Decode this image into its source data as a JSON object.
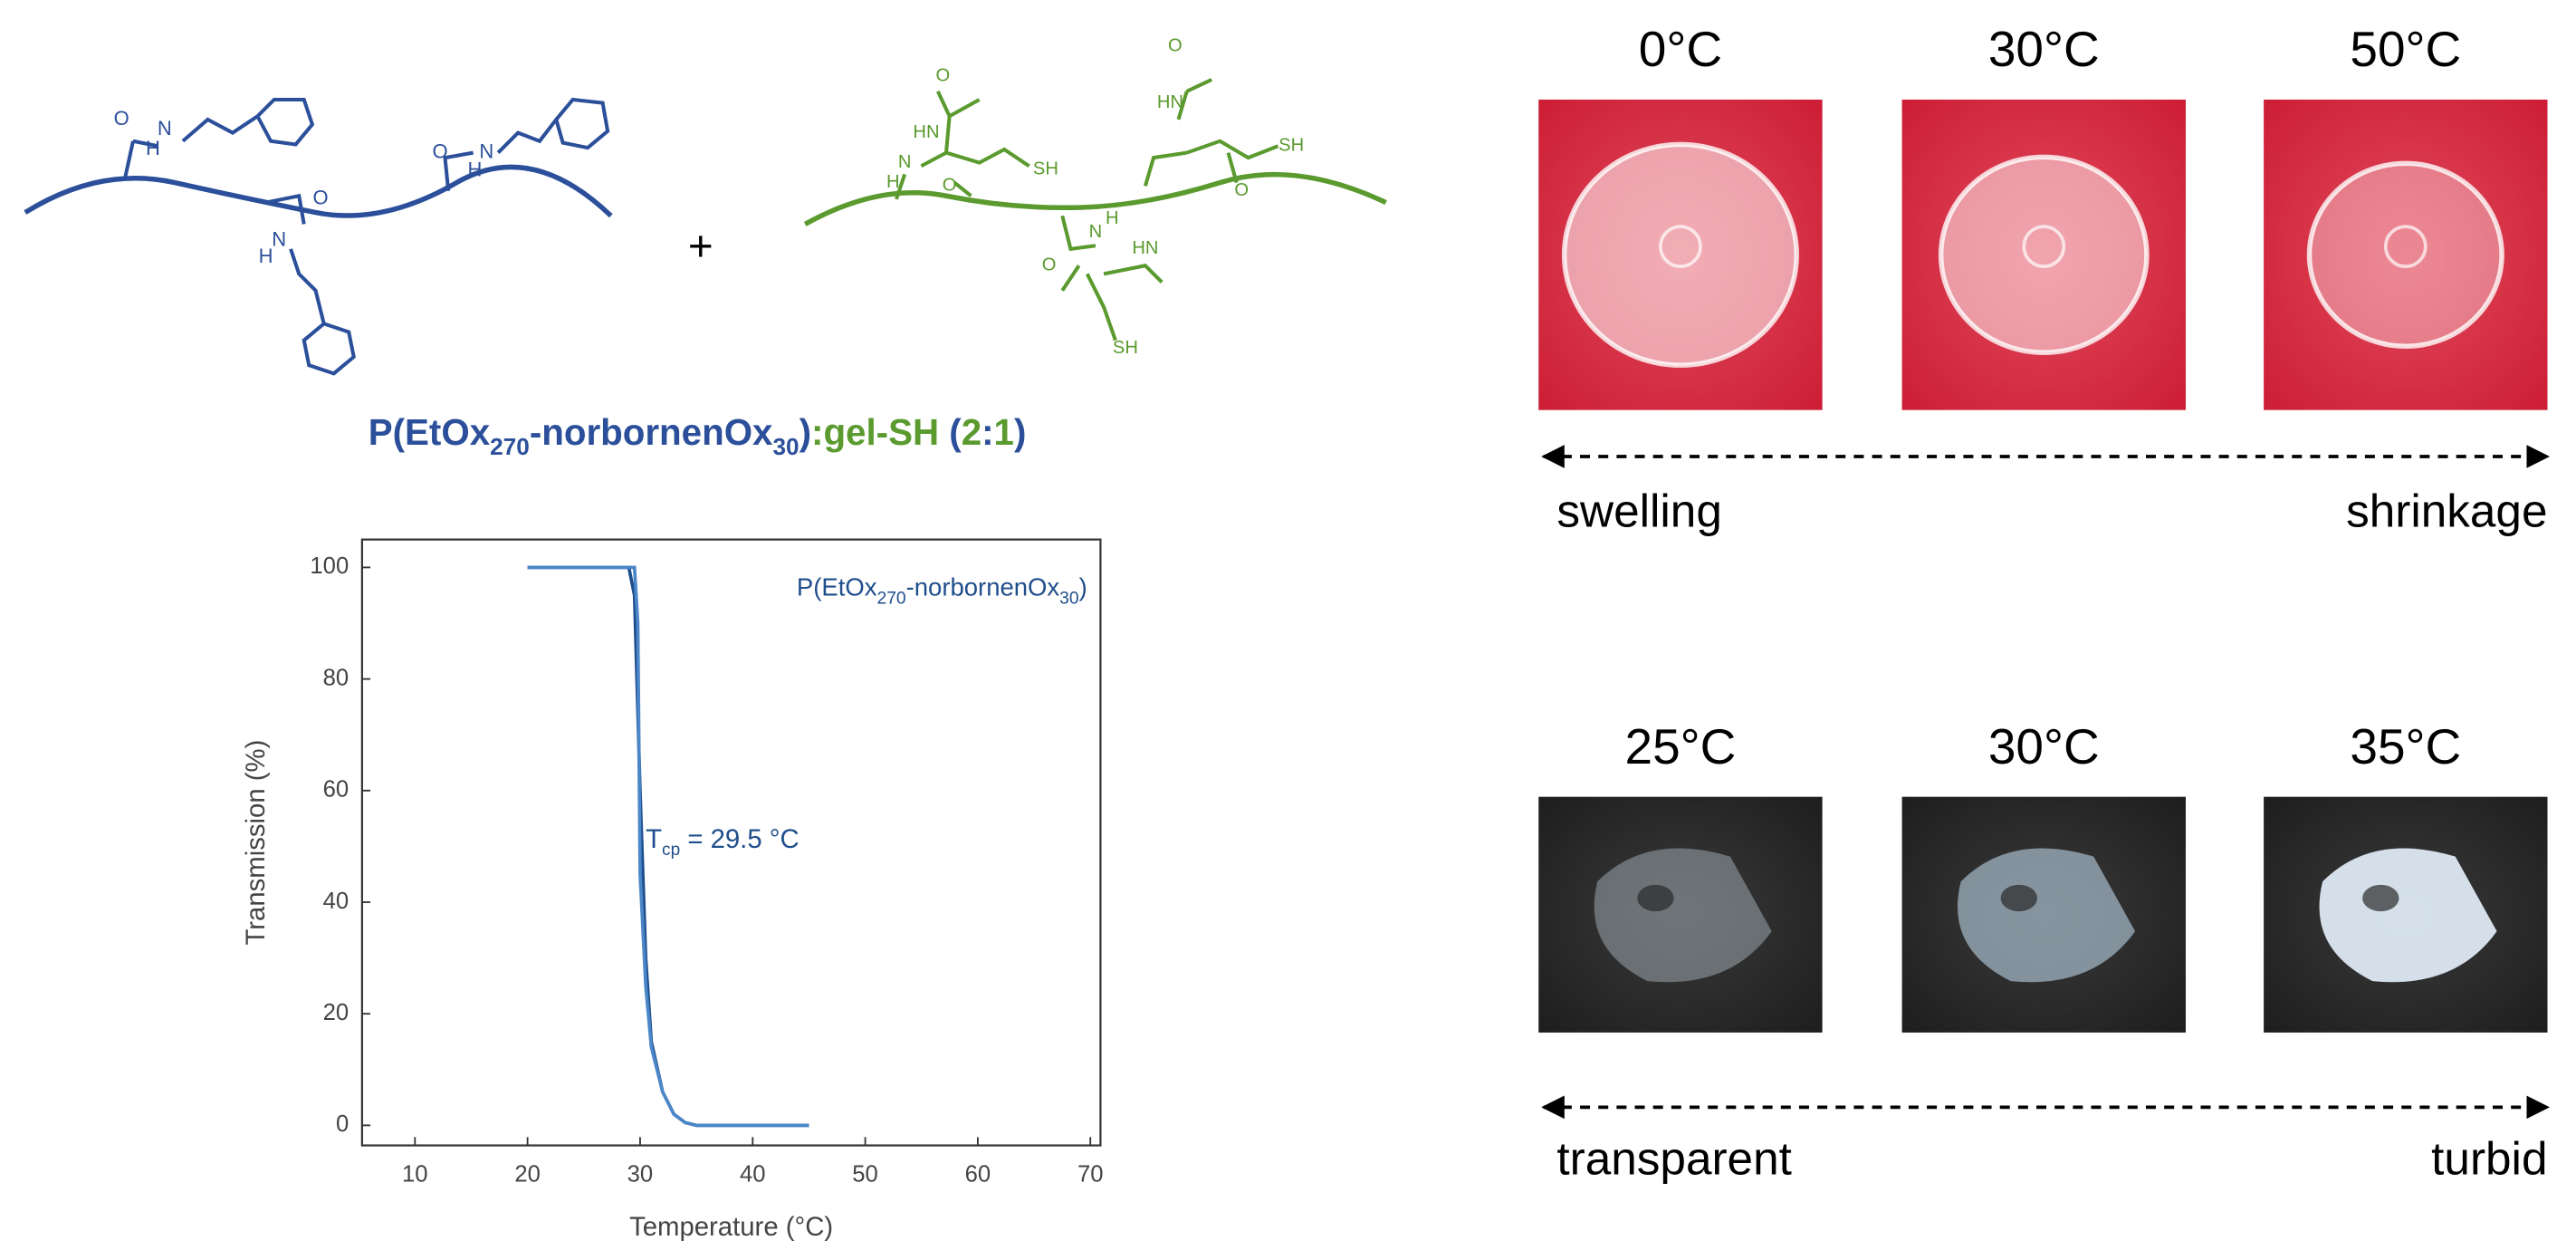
{
  "scheme": {
    "plus": "+",
    "blue_atoms": [
      "O",
      "N",
      "H",
      "O",
      "N",
      "H",
      "O",
      "N",
      "H"
    ],
    "green_atoms": [
      "O",
      "HN",
      "SH",
      "N",
      "H",
      "O",
      "O",
      "HN",
      "SH",
      "O",
      "N",
      "H",
      "O",
      "HN",
      "SH"
    ],
    "caption": [
      {
        "text": "P(EtOx",
        "color": "#2b4f9a"
      },
      {
        "text": "270",
        "color": "#2b4f9a",
        "sub": true
      },
      {
        "text": "-norbornenOx",
        "color": "#2b4f9a"
      },
      {
        "text": "30",
        "color": "#2b4f9a",
        "sub": true
      },
      {
        "text": ")",
        "color": "#2b4f9a"
      },
      {
        "text": ":gel-SH",
        "color": "#5a9a2e"
      },
      {
        "text": " (",
        "color": "#2b4f9a"
      },
      {
        "text": "2",
        "color": "#5a9a2e"
      },
      {
        "text": ":",
        "color": "#2b4f9a"
      },
      {
        "text": "1",
        "color": "#5a9a2e"
      },
      {
        "text": ")",
        "color": "#2b4f9a"
      }
    ]
  },
  "chart_data": {
    "type": "line",
    "x_label": "Temperature (°C)",
    "y_label": "Transmission (%)",
    "series": [
      {
        "name": "P(EtOx270-norbornenOx30)",
        "color": "#1f4e8c",
        "x": [
          20,
          28.5,
          29,
          29.5,
          30,
          30.5,
          31,
          32,
          33,
          34,
          35,
          45
        ],
        "values": [
          100,
          100,
          100,
          95,
          60,
          30,
          15,
          6,
          2,
          0.5,
          0,
          0
        ]
      },
      {
        "color": "#4a86c8",
        "x": [
          20,
          29.5,
          29.8,
          30,
          30.5,
          31,
          32,
          33,
          34,
          35,
          45
        ],
        "values": [
          100,
          100,
          90,
          45,
          25,
          14,
          6,
          2,
          0.5,
          0,
          0
        ]
      }
    ],
    "annotation": {
      "main": "T",
      "sub": "cp",
      "rest": " = 29.5 °C",
      "x": 30.5,
      "y": 51
    },
    "xlim": [
      5.3,
      70.9
    ],
    "ylim": [
      -3.6,
      105
    ],
    "xticks": [
      10,
      20,
      30,
      40,
      50,
      60,
      70
    ],
    "yticks": [
      0,
      20,
      40,
      60,
      80,
      100
    ],
    "grid": false
  },
  "photos": [
    {
      "temps": [
        "0°C",
        "30°C",
        "50°C"
      ],
      "left": "swelling",
      "right": "shrinkage",
      "background": "red"
    },
    {
      "temps": [
        "25°C",
        "30°C",
        "35°C"
      ],
      "left": "transparent",
      "right": "turbid",
      "background": "dark"
    }
  ]
}
